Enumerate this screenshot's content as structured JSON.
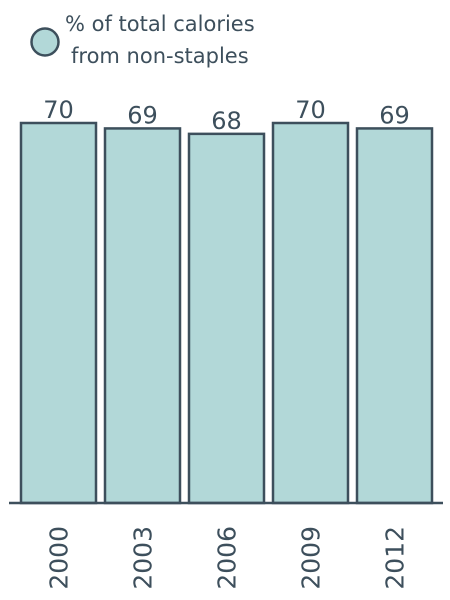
{
  "chart_data": {
    "type": "bar",
    "categories": [
      "2000",
      "2003",
      "2006",
      "2009",
      "2012"
    ],
    "values": [
      70,
      69,
      68,
      70,
      69
    ],
    "series": [
      {
        "name": "% of total calories from non-staples",
        "values": [
          70,
          69,
          68,
          70,
          69
        ]
      }
    ],
    "legend": {
      "line1": "% of total calories",
      "line2": "from non-staples",
      "position": "top-left"
    },
    "ylim": [
      0,
      70
    ],
    "grid": false,
    "colors": {
      "bar_fill": "#b2d8d8",
      "bar_stroke": "#3d4f5c",
      "text": "#3d4f5c",
      "axis": "#3d4f5c"
    }
  }
}
